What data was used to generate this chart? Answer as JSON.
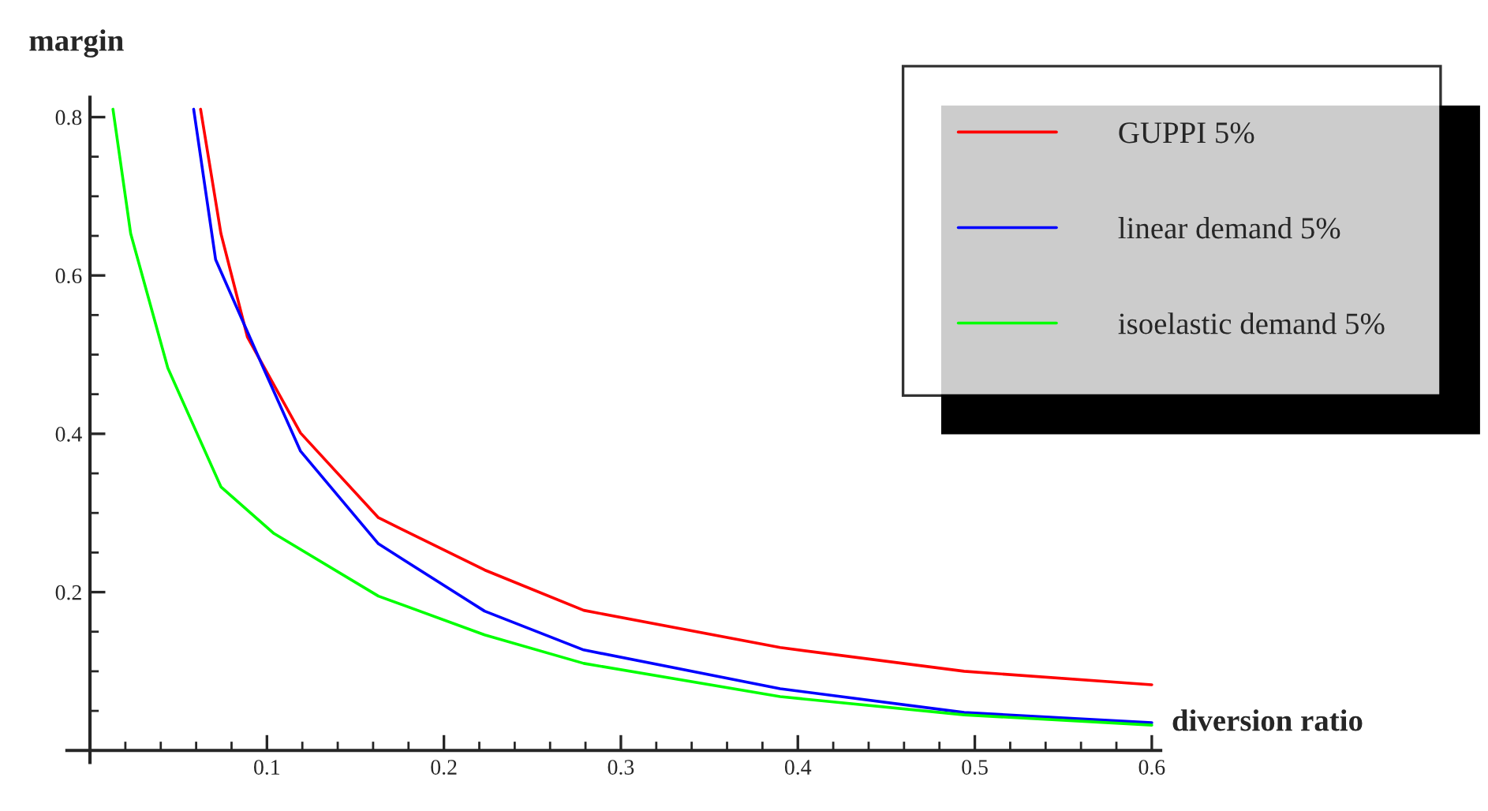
{
  "chart_data": {
    "type": "line",
    "xlabel": "diversion ratio",
    "ylabel": "margin",
    "xlim": [
      -0.013,
      0.605
    ],
    "ylim": [
      -0.015,
      0.825
    ],
    "xticks": [
      0.1,
      0.2,
      0.3,
      0.4,
      0.5,
      0.6
    ],
    "yticks": [
      0.2,
      0.4,
      0.6,
      0.8
    ],
    "legend": "top right",
    "grid": false,
    "marker": "none",
    "line_style": "solid",
    "series": [
      {
        "name": "GUPPI 5%",
        "color": "#ff0000",
        "x": [
          0.0625,
          0.074,
          0.089,
          0.119,
          0.163,
          0.223,
          0.279,
          0.39,
          0.494,
          0.6
        ],
        "values": [
          0.81,
          0.653,
          0.522,
          0.401,
          0.294,
          0.228,
          0.177,
          0.13,
          0.1,
          0.083
        ]
      },
      {
        "name": "linear demand 5%",
        "color": "#0000ff",
        "x": [
          0.0586,
          0.071,
          0.098,
          0.119,
          0.163,
          0.223,
          0.279,
          0.39,
          0.494,
          0.6
        ],
        "values": [
          0.81,
          0.62,
          0.483,
          0.378,
          0.261,
          0.176,
          0.127,
          0.078,
          0.048,
          0.035
        ]
      },
      {
        "name": "isoelastic demand 5%",
        "color": "#00ff00",
        "x": [
          0.013,
          0.023,
          0.044,
          0.074,
          0.104,
          0.163,
          0.223,
          0.279,
          0.39,
          0.494,
          0.6
        ],
        "values": [
          0.81,
          0.653,
          0.483,
          0.333,
          0.274,
          0.195,
          0.146,
          0.11,
          0.068,
          0.045,
          0.032
        ]
      }
    ]
  }
}
